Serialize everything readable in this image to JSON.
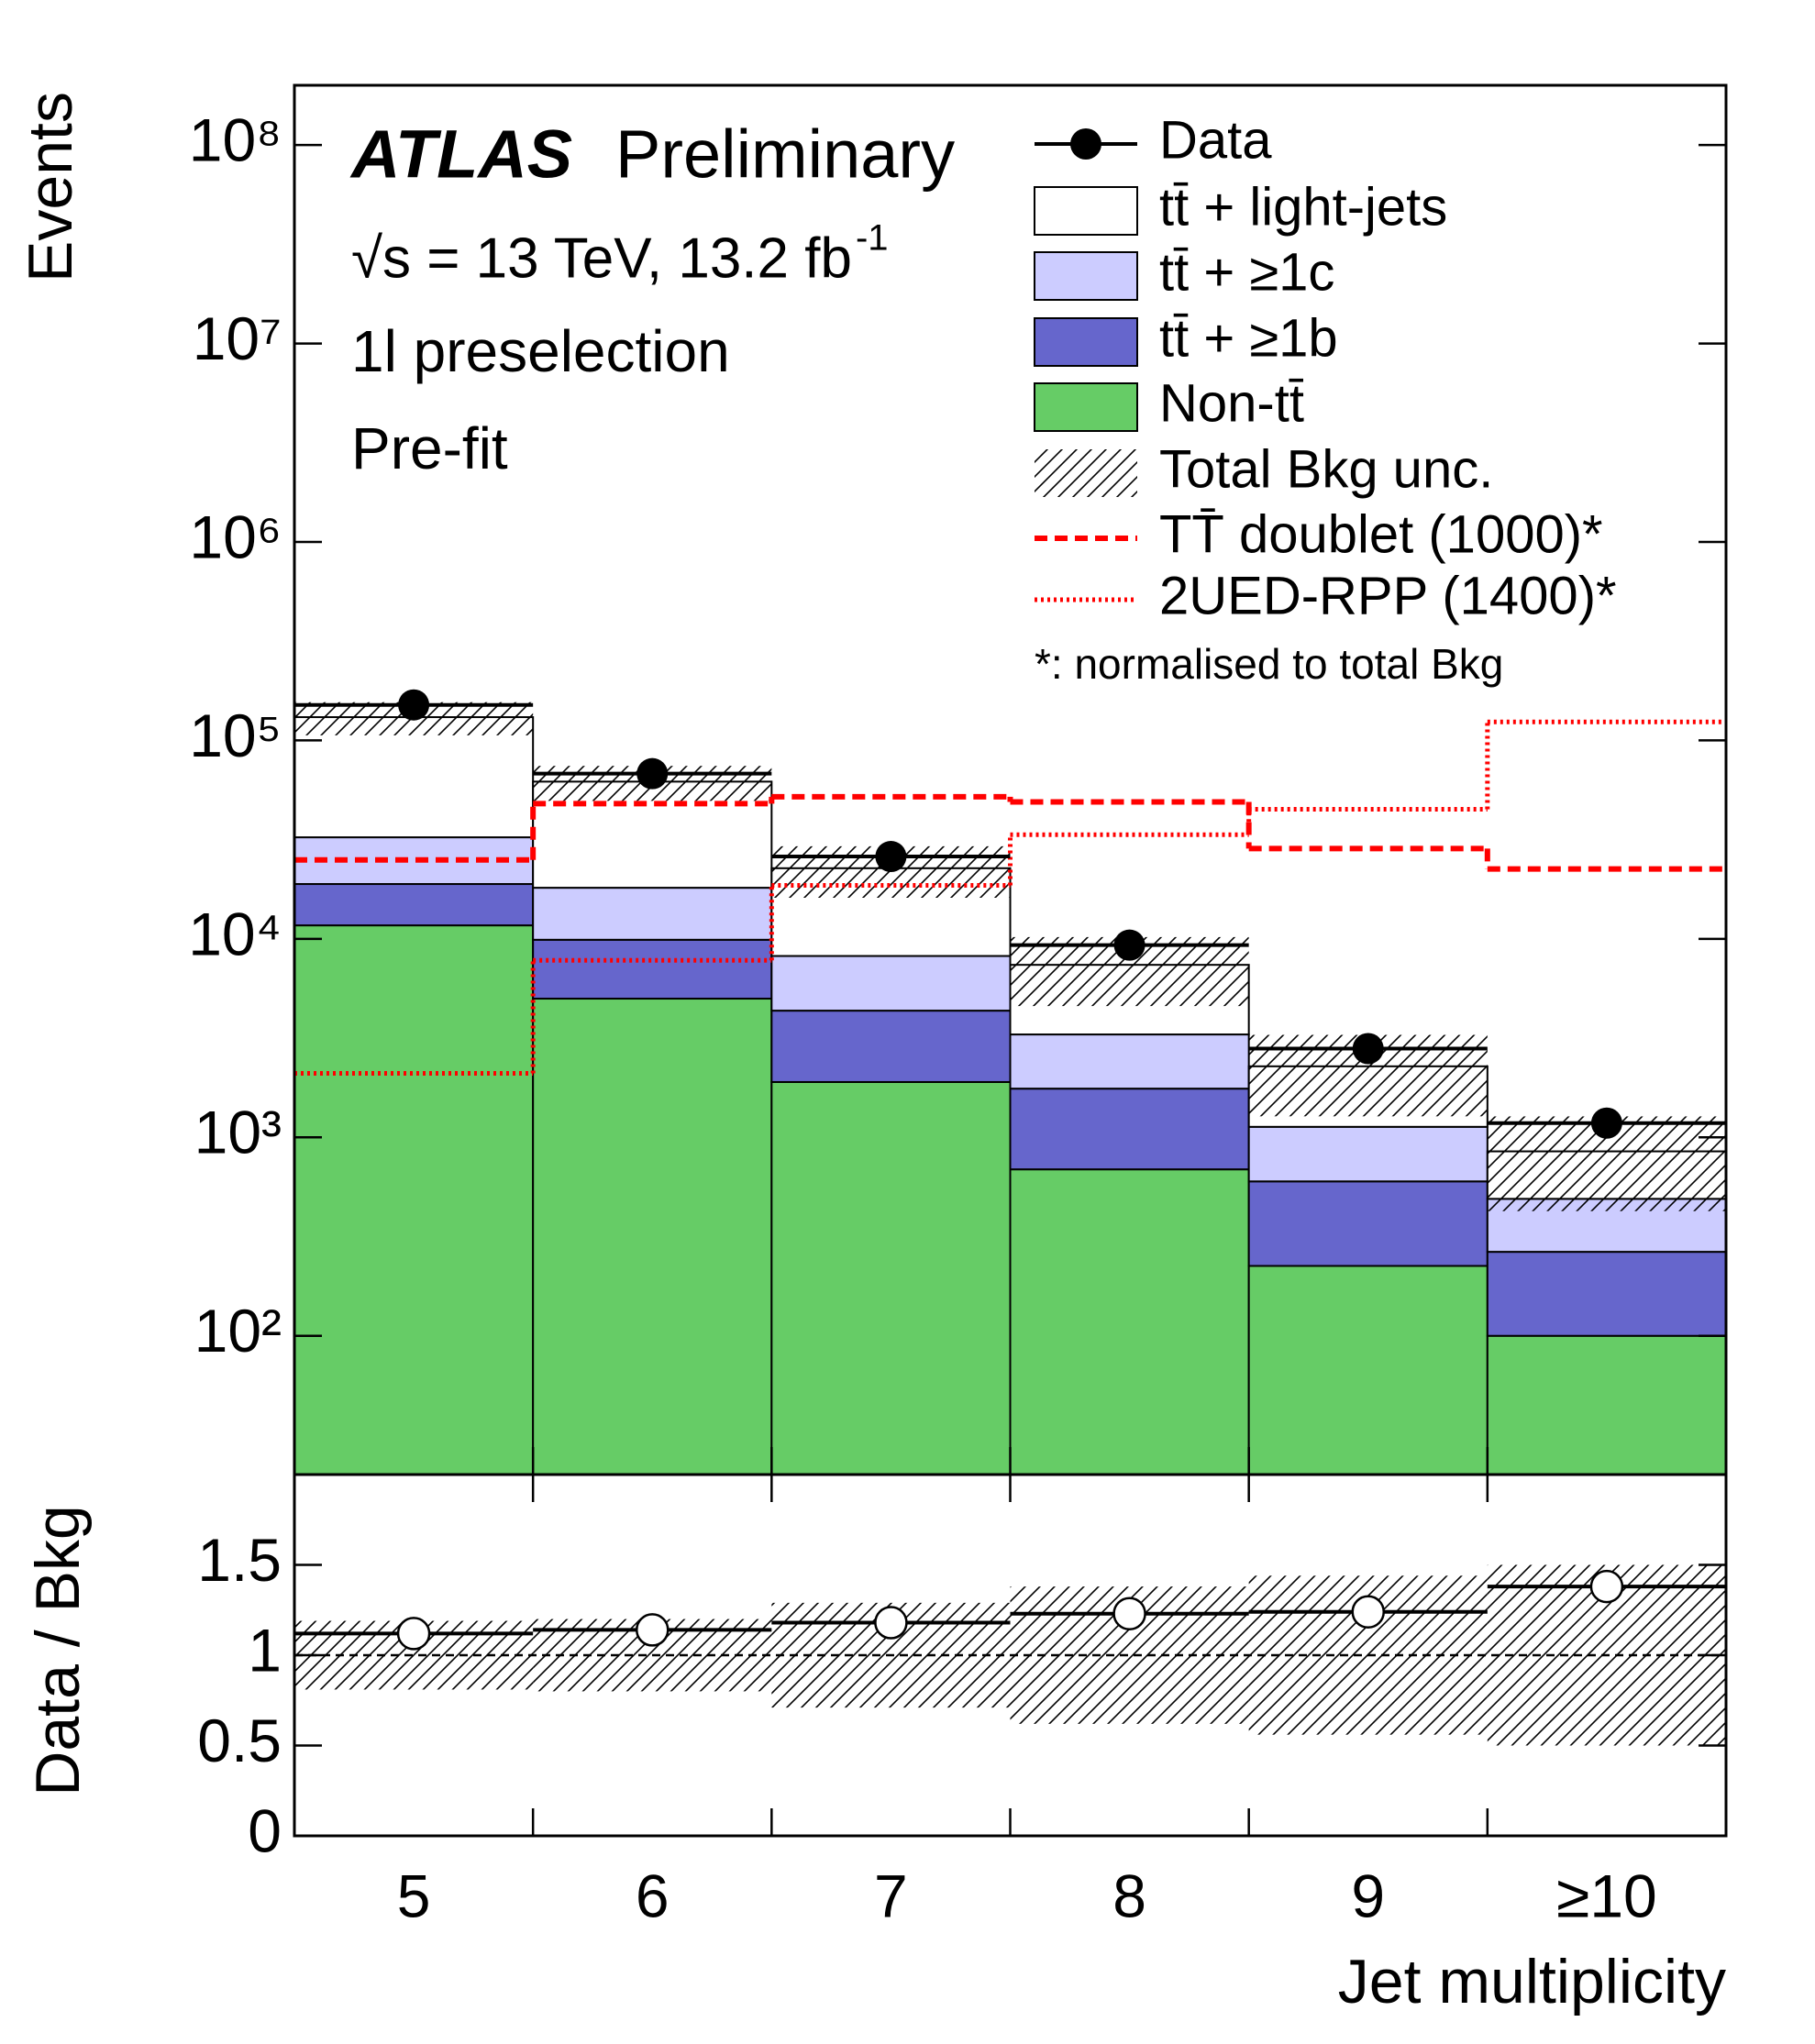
{
  "chart_data": {
    "type": "stacked_step",
    "xlabel": "Jet multiplicity",
    "ylabel": "Events",
    "categories": [
      "5",
      "6",
      "7",
      "8",
      "9",
      "≥10"
    ],
    "log": true,
    "ylim": [
      20,
      200000000
    ],
    "yticks": [
      {
        "value": 100,
        "label": "10²"
      },
      {
        "value": 1000,
        "label": "10³"
      },
      {
        "value": 10000,
        "label": "10⁴"
      },
      {
        "value": 100000,
        "label": "10⁵"
      },
      {
        "value": 1000000,
        "label": "10⁶"
      },
      {
        "value": 10000000,
        "label": "10⁷"
      },
      {
        "value": 100000000,
        "label": "10⁸"
      }
    ],
    "annotations": [
      "ATLAS",
      "Preliminary",
      "√s = 13 TeV, 13.2 fb",
      "-1",
      "1l preselection",
      "Pre-fit",
      "*: normalised to total Bkg"
    ],
    "data": {
      "name": "Data",
      "color": "#000000",
      "values": [
        151000,
        68000,
        26000,
        9300,
        2800,
        1180
      ]
    },
    "series": [
      {
        "name": "Non-tt̄",
        "color": "#66cc66",
        "values": [
          11700,
          5000,
          1900,
          690,
          225,
          100
        ]
      },
      {
        "name": "tt̄ + ≥1b",
        "color": "#6666cc",
        "values": [
          7200,
          4900,
          2450,
          1070,
          375,
          165
        ]
      },
      {
        "name": "tt̄ + ≥1c",
        "color": "#ccccff",
        "values": [
          13600,
          8200,
          3850,
          1540,
          530,
          225
        ]
      },
      {
        "name": "tt̄ + light-jets",
        "color": "#ffffff",
        "values": [
          98500,
          43900,
          14500,
          4100,
          1150,
          360
        ]
      }
    ],
    "uncertainty": {
      "name": "Total Bkg unc.",
      "values": [
        0.19,
        0.2,
        0.29,
        0.38,
        0.44,
        0.5
      ]
    },
    "signals": [
      {
        "name": "TT̄ doublet (1000)*",
        "color": "#ff0000",
        "style": "dashed",
        "values": [
          25000,
          48000,
          52000,
          49000,
          28500,
          22500
        ]
      },
      {
        "name": "2UED-RPP (1400)*",
        "color": "#ff0000",
        "style": "dotted",
        "values": [
          2100,
          7800,
          18600,
          33500,
          45000,
          124000
        ]
      }
    ],
    "ratio": {
      "ylabel": "Data / Bkg",
      "ylim": [
        0,
        2
      ],
      "yticks": [
        0,
        0.5,
        1,
        1.5
      ],
      "reference": 1,
      "values": [
        1.12,
        1.14,
        1.18,
        1.23,
        1.24,
        1.38
      ]
    }
  }
}
